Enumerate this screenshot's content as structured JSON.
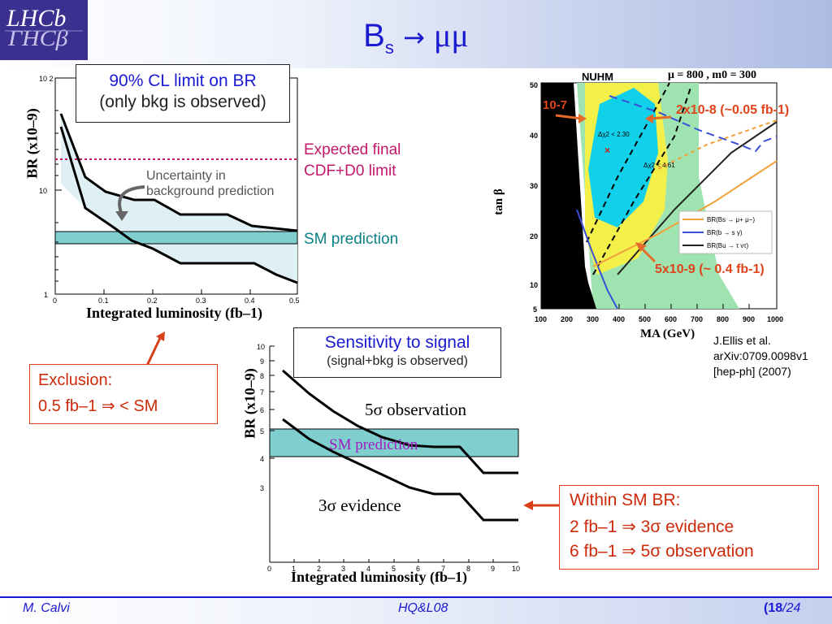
{
  "title": {
    "main": "B",
    "sub": "s",
    "arrow": "→",
    "mu": "μμ"
  },
  "logo": {
    "text_top": "LHCb",
    "text_bottom": "ΓHCβ"
  },
  "plot1": {
    "callout_title": "90% CL limit on BR",
    "callout_sub": "(only bkg is observed)",
    "ylabel": "BR (x10–9)",
    "xlabel": "Integrated luminosity (fb–1)",
    "y_ticks": [
      "10 2",
      "10",
      "1"
    ],
    "x_ticks": [
      "0",
      "0.1",
      "0.2",
      "0.3",
      "0.4",
      "0.5"
    ],
    "expected_label_1": "Expected final",
    "expected_label_2": "CDF+D0 limit",
    "uncertainty_1": "Uncertainty in",
    "uncertainty_2": "background prediction",
    "sm_label": "SM prediction"
  },
  "plot2": {
    "callout_title": "Sensitivity to signal",
    "callout_sub": "(signal+bkg is observed)",
    "ylabel": "BR (x10–9)",
    "xlabel": "Integrated luminosity (fb–1)",
    "y_ticks": [
      "10",
      "9",
      "8",
      "7",
      "6",
      "5",
      "4",
      "3"
    ],
    "x_ticks": [
      "0",
      "1",
      "2",
      "3",
      "4",
      "5",
      "6",
      "7",
      "8",
      "9",
      "10"
    ],
    "obs_label": "5σ observation",
    "evid_label": "3σ evidence",
    "sm_label": "SM prediction"
  },
  "exclusion": {
    "line1": "Exclusion:",
    "line2": "0.5   fb–1  ⇒ < SM"
  },
  "within": {
    "line1": "Within SM BR:",
    "line2": "2 fb–1 ⇒  3σ evidence",
    "line3": "6 fb–1 ⇒  5σ observation"
  },
  "nuhm": {
    "title": "NUHM",
    "params": "μ = 800 ,  m0 = 300",
    "label_1e7": "10-7",
    "label_2e8": "2x10-8 (~0.05 fb-1)",
    "label_5e9": "5x10-9 (~ 0.4 fb-1)",
    "ylabel": "tan β",
    "xlabel": "MA (GeV)",
    "y_ticks": [
      "50",
      "40",
      "30",
      "20",
      "10",
      "5"
    ],
    "x_ticks": [
      "100",
      "200",
      "300",
      "400",
      "500",
      "600",
      "700",
      "800",
      "900",
      "1000"
    ],
    "chi1": "Δχ2 < 2.30",
    "chi2": "Δχ2 < 4.61",
    "legend": [
      "BR(Bs → μ+ μ−)",
      "BR(b → s γ)",
      "BR(Bu → τ ντ)"
    ],
    "legend_colors": [
      "#f2a13a",
      "#3a4fd8",
      "#222222"
    ]
  },
  "reference": {
    "line1": "J.Ellis et al.",
    "line2": "arXiv:0709.0098v1",
    "line3": "[hep-ph] (2007)"
  },
  "footer": {
    "author": "M. Calvi",
    "conference": "HQ&L08",
    "page": "18",
    "total": "24"
  },
  "colors": {
    "title_blue": "#1a1ad0",
    "red": "#cc2a0a",
    "teal": "#7fcfcf",
    "magenta": "#c2186b"
  }
}
